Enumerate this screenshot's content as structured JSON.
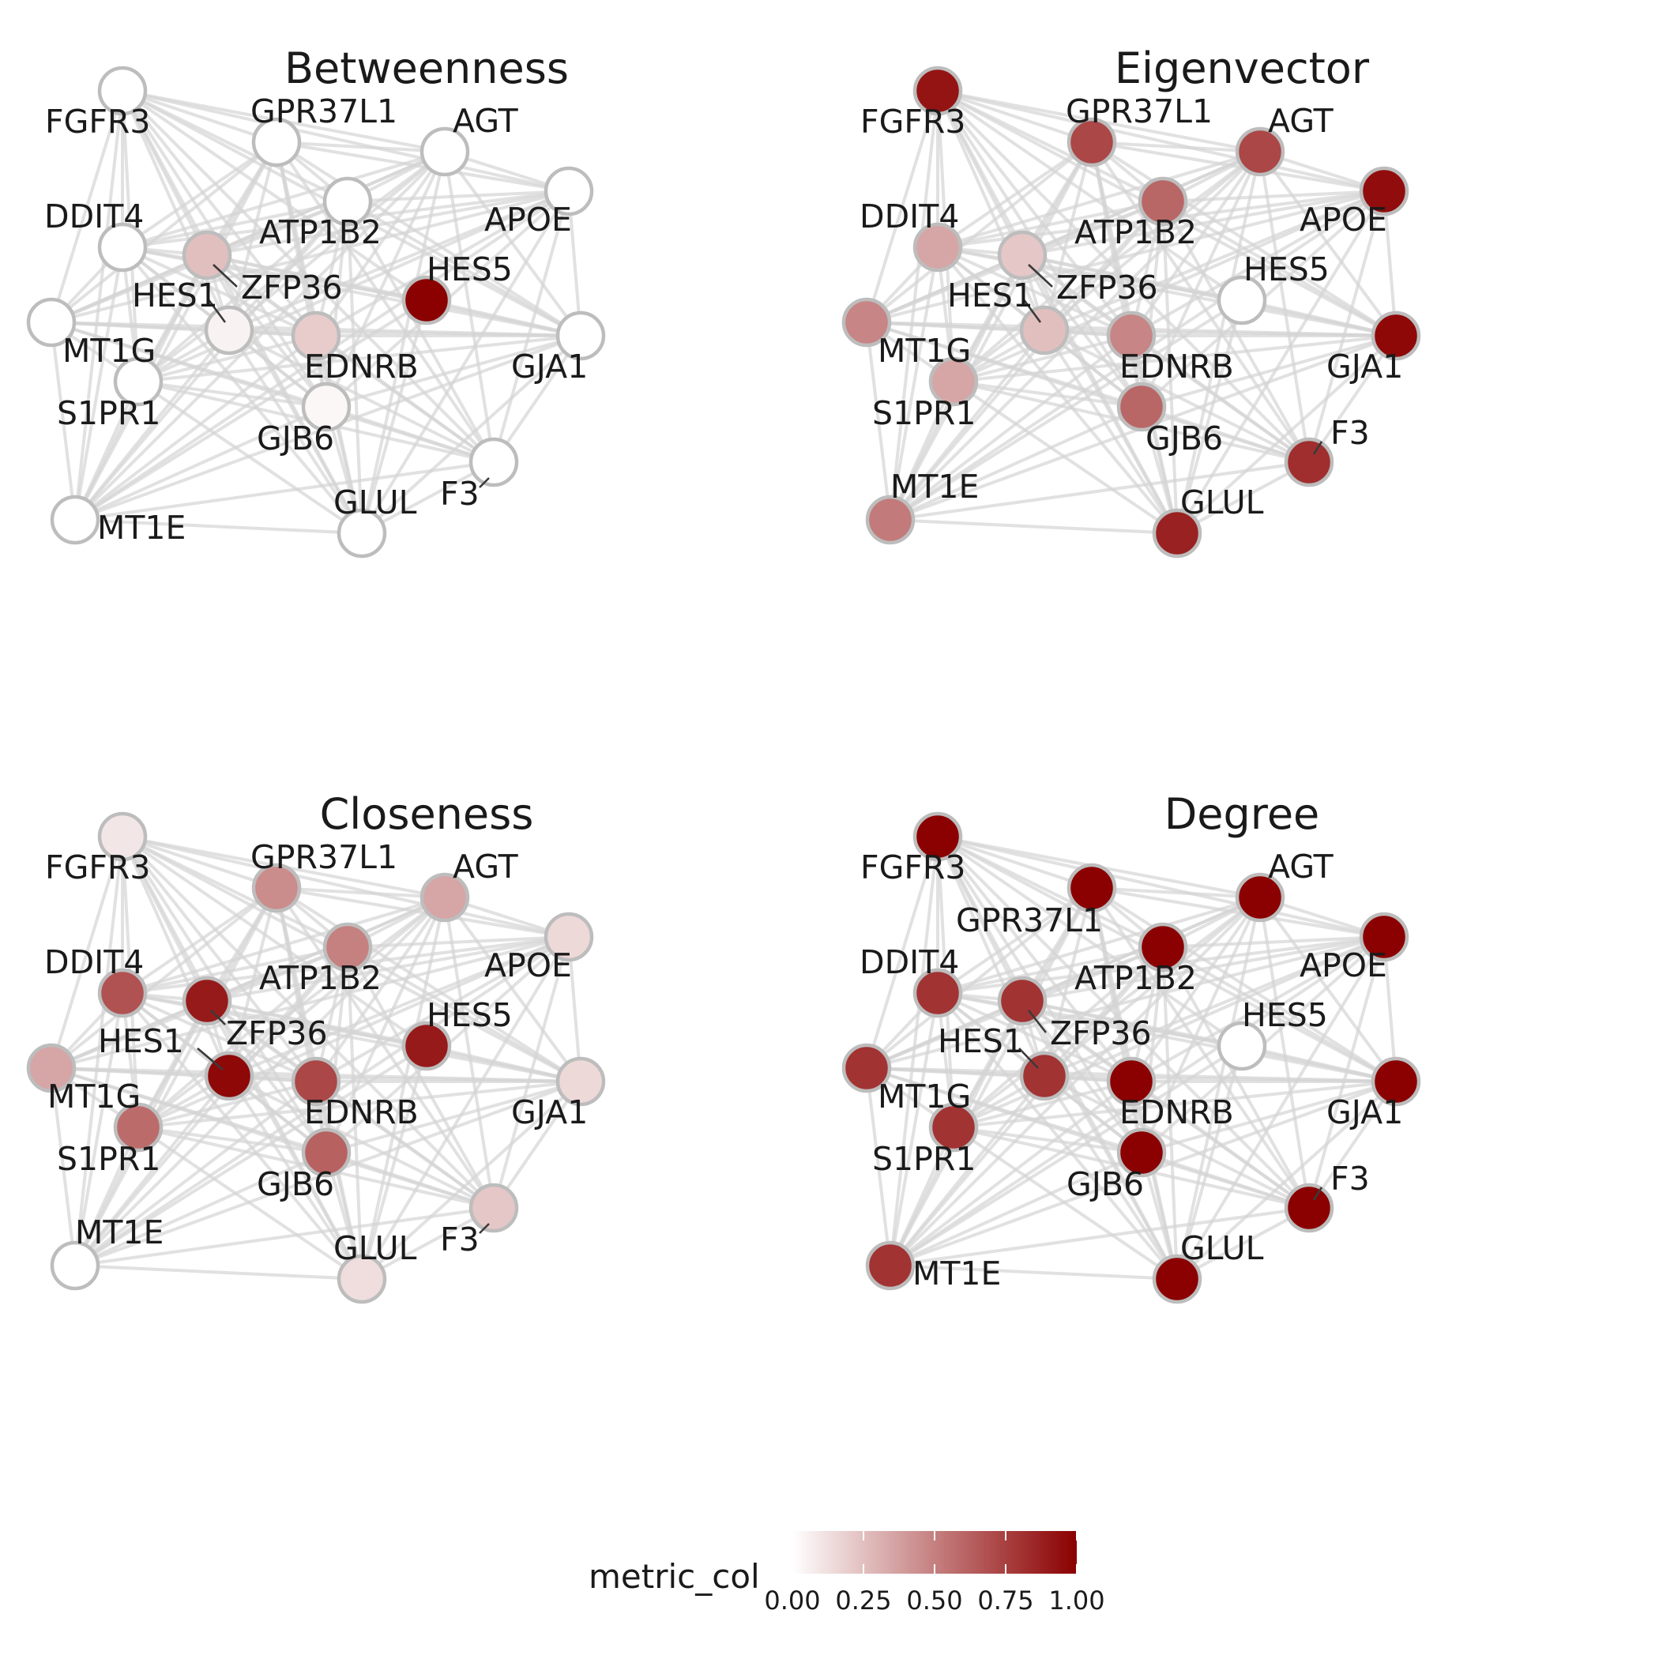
{
  "panels": [
    {
      "title": "Betweenness",
      "nodes": [
        {
          "id": "FGFR3",
          "v": 0.0
        },
        {
          "id": "GPR37L1",
          "v": 0.0
        },
        {
          "id": "AGT",
          "v": 0.0
        },
        {
          "id": "APOE",
          "v": 0.0
        },
        {
          "id": "ATP1B2",
          "v": 0.0
        },
        {
          "id": "DDIT4",
          "v": 0.0
        },
        {
          "id": "ZFP36",
          "v": 0.25
        },
        {
          "id": "HES5",
          "v": 1.0
        },
        {
          "id": "HES1",
          "v": 0.05
        },
        {
          "id": "EDNRB",
          "v": 0.2
        },
        {
          "id": "MT1G",
          "v": 0.0
        },
        {
          "id": "GJA1",
          "v": 0.0
        },
        {
          "id": "S1PR1",
          "v": 0.0
        },
        {
          "id": "GJB6",
          "v": 0.03
        },
        {
          "id": "F3",
          "v": 0.0
        },
        {
          "id": "GLUL",
          "v": 0.0
        },
        {
          "id": "MT1E",
          "v": 0.0
        }
      ]
    },
    {
      "title": "Eigenvector",
      "nodes": [
        {
          "id": "FGFR3",
          "v": 0.92
        },
        {
          "id": "GPR37L1",
          "v": 0.72
        },
        {
          "id": "AGT",
          "v": 0.72
        },
        {
          "id": "APOE",
          "v": 0.95
        },
        {
          "id": "ATP1B2",
          "v": 0.6
        },
        {
          "id": "DDIT4",
          "v": 0.35
        },
        {
          "id": "ZFP36",
          "v": 0.22
        },
        {
          "id": "HES5",
          "v": 0.0
        },
        {
          "id": "HES1",
          "v": 0.25
        },
        {
          "id": "EDNRB",
          "v": 0.48
        },
        {
          "id": "MT1G",
          "v": 0.48
        },
        {
          "id": "GJA1",
          "v": 0.97
        },
        {
          "id": "S1PR1",
          "v": 0.35
        },
        {
          "id": "GJB6",
          "v": 0.6
        },
        {
          "id": "F3",
          "v": 0.82
        },
        {
          "id": "GLUL",
          "v": 0.87
        },
        {
          "id": "MT1E",
          "v": 0.52
        }
      ]
    },
    {
      "title": "Closeness",
      "nodes": [
        {
          "id": "FGFR3",
          "v": 0.1
        },
        {
          "id": "GPR37L1",
          "v": 0.45
        },
        {
          "id": "AGT",
          "v": 0.35
        },
        {
          "id": "APOE",
          "v": 0.15
        },
        {
          "id": "ATP1B2",
          "v": 0.5
        },
        {
          "id": "DDIT4",
          "v": 0.68
        },
        {
          "id": "ZFP36",
          "v": 0.9
        },
        {
          "id": "HES5",
          "v": 0.9
        },
        {
          "id": "HES1",
          "v": 0.97
        },
        {
          "id": "EDNRB",
          "v": 0.72
        },
        {
          "id": "MT1G",
          "v": 0.35
        },
        {
          "id": "GJA1",
          "v": 0.15
        },
        {
          "id": "S1PR1",
          "v": 0.58
        },
        {
          "id": "GJB6",
          "v": 0.62
        },
        {
          "id": "F3",
          "v": 0.22
        },
        {
          "id": "GLUL",
          "v": 0.13
        },
        {
          "id": "MT1E",
          "v": 0.0
        }
      ]
    },
    {
      "title": "Degree",
      "nodes": [
        {
          "id": "FGFR3",
          "v": 1.0
        },
        {
          "id": "GPR37L1",
          "v": 1.0
        },
        {
          "id": "AGT",
          "v": 1.0
        },
        {
          "id": "APOE",
          "v": 1.0
        },
        {
          "id": "ATP1B2",
          "v": 1.0
        },
        {
          "id": "DDIT4",
          "v": 0.8
        },
        {
          "id": "ZFP36",
          "v": 0.8
        },
        {
          "id": "HES5",
          "v": 0.0
        },
        {
          "id": "HES1",
          "v": 0.8
        },
        {
          "id": "EDNRB",
          "v": 1.0
        },
        {
          "id": "MT1G",
          "v": 0.8
        },
        {
          "id": "GJA1",
          "v": 1.0
        },
        {
          "id": "S1PR1",
          "v": 0.8
        },
        {
          "id": "GJB6",
          "v": 1.0
        },
        {
          "id": "F3",
          "v": 1.0
        },
        {
          "id": "GLUL",
          "v": 1.0
        },
        {
          "id": "MT1E",
          "v": 0.8
        }
      ]
    }
  ],
  "legend": {
    "title": "metric_col",
    "ticks": [
      "0.00",
      "0.25",
      "0.50",
      "0.75",
      "1.00"
    ],
    "colors": [
      "#ffffff",
      "#8b0000"
    ]
  }
}
